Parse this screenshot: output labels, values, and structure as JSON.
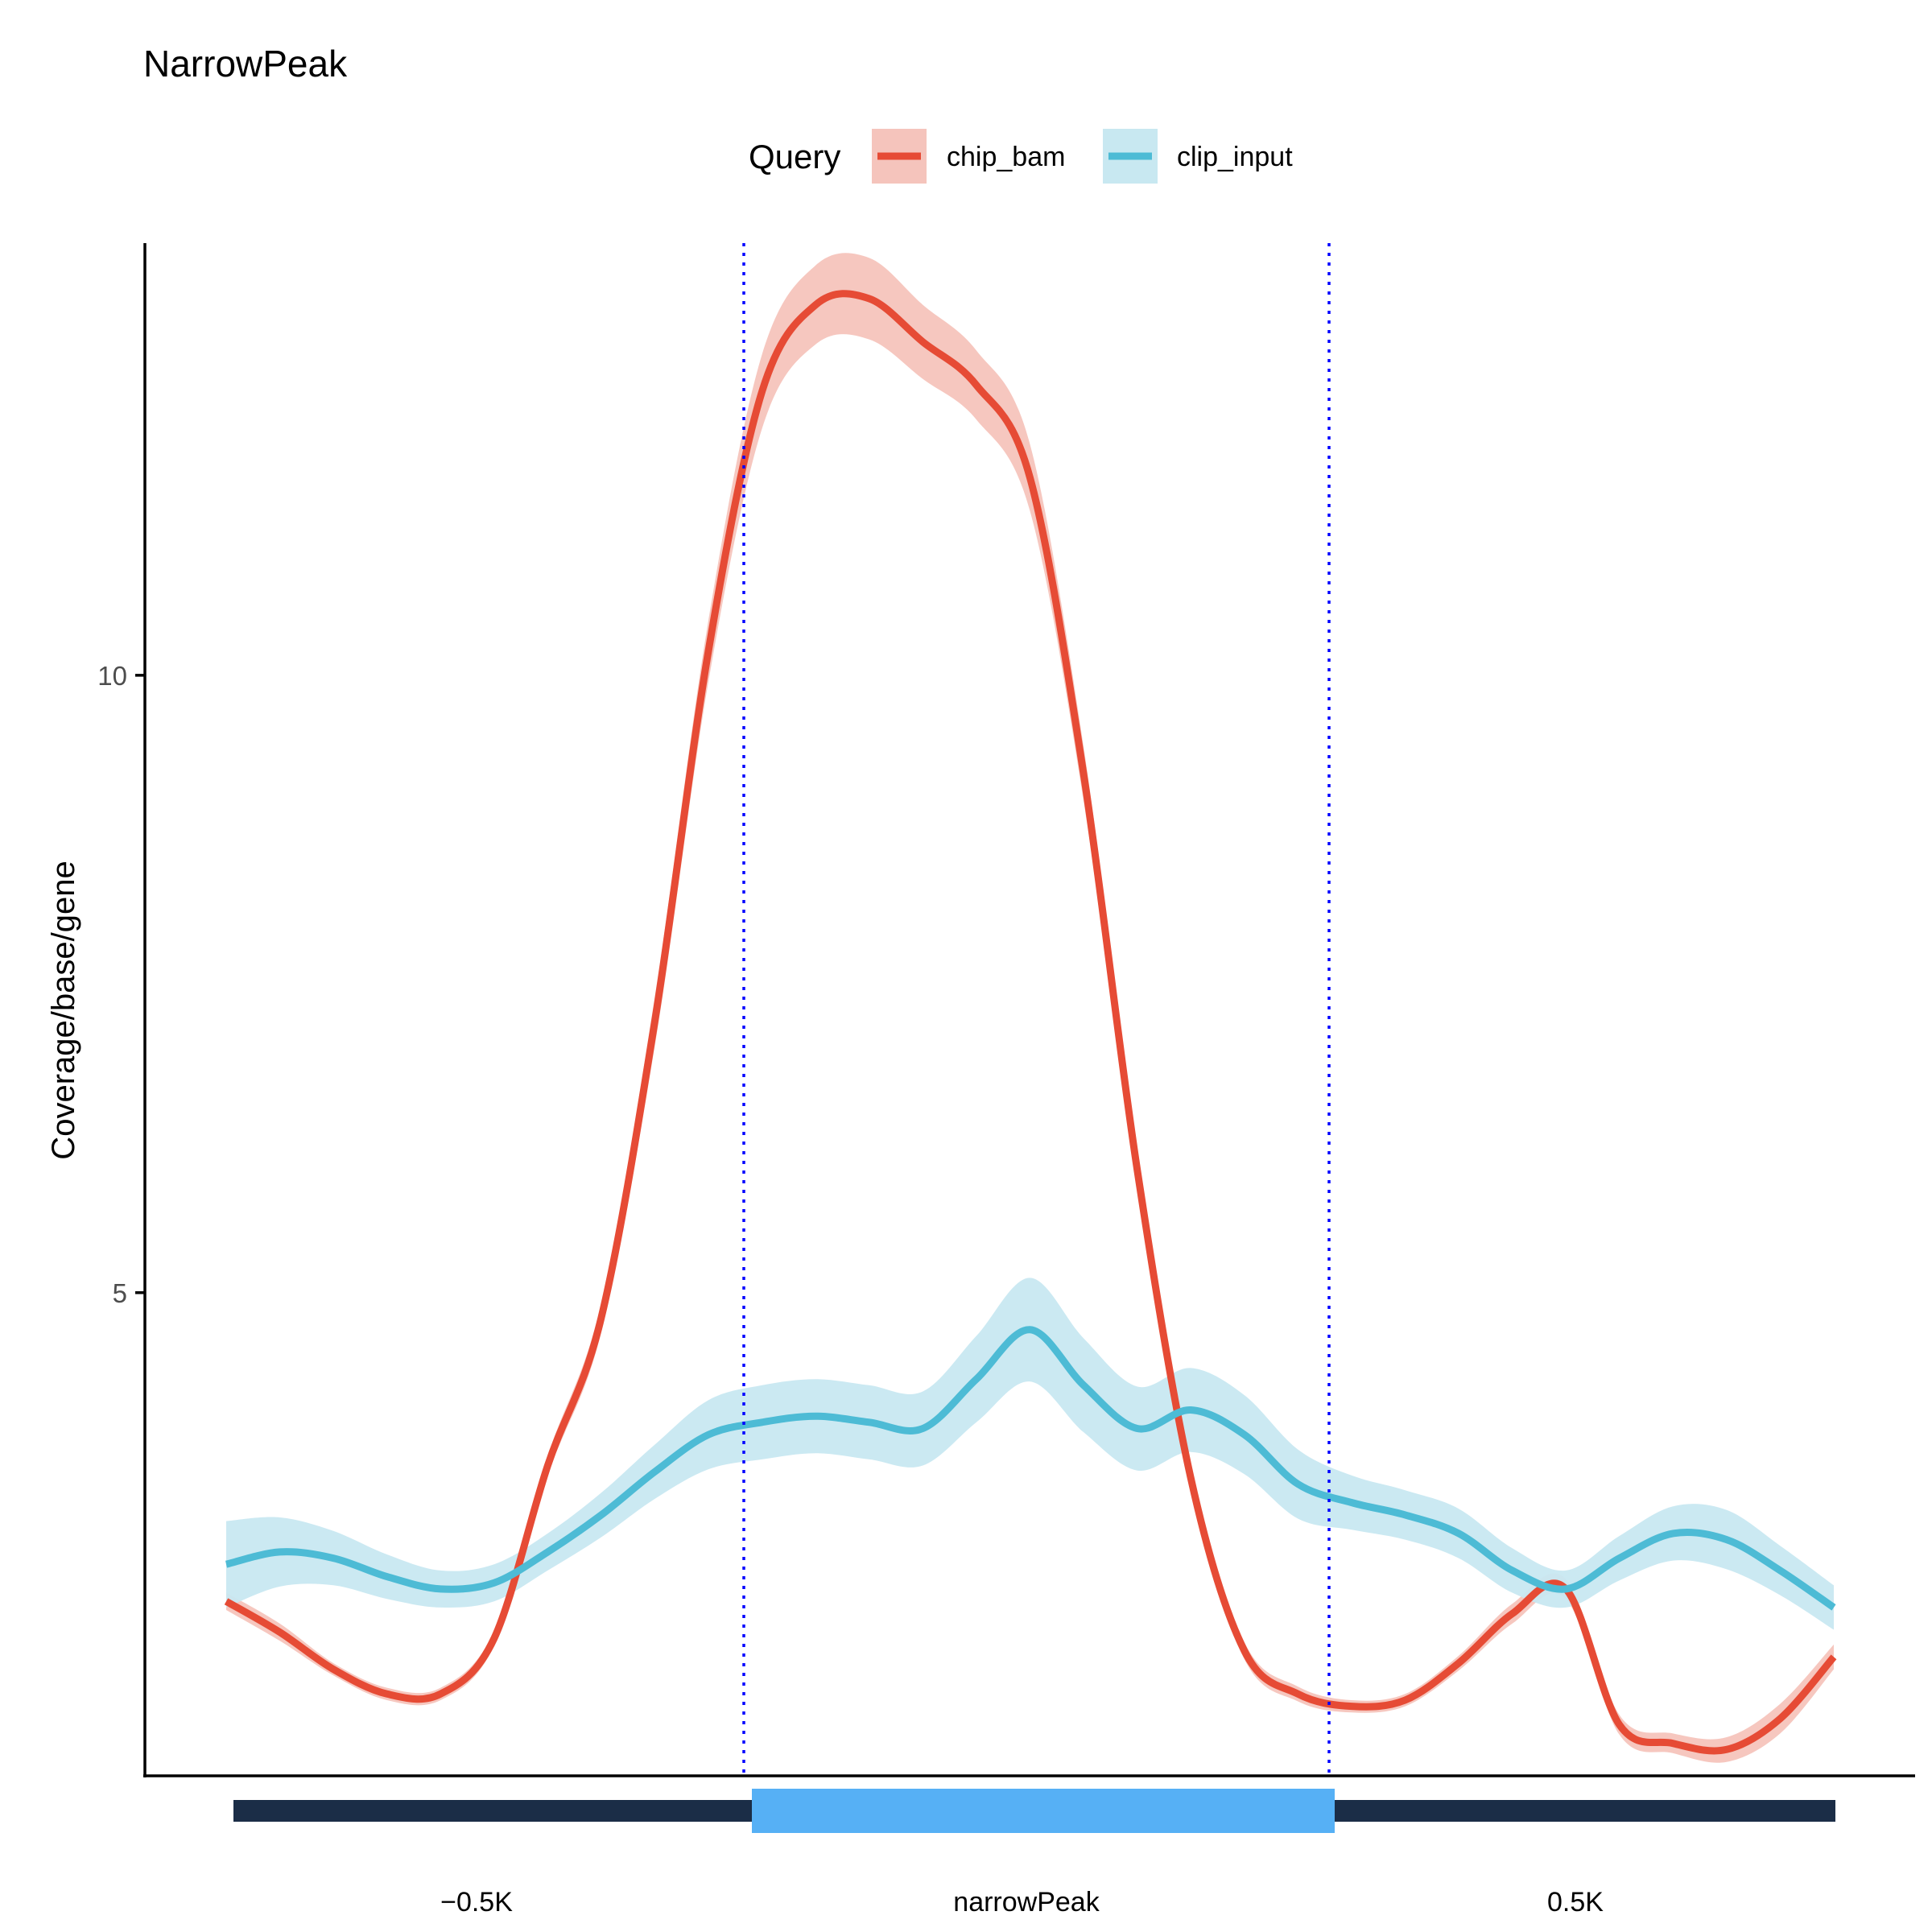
{
  "title": "NarrowPeak",
  "legend": {
    "title": "Query",
    "items": [
      {
        "label": "chip_bam",
        "line_color": "#E64B35",
        "fill_color": "#F5C4BC"
      },
      {
        "label": "clip_input",
        "line_color": "#4DBBD5",
        "fill_color": "#C8E8F1"
      }
    ]
  },
  "axes": {
    "ylabel": "Coverage/base/gene",
    "y_ticks": [
      {
        "value": 5,
        "label": "5"
      },
      {
        "value": 10,
        "label": "10"
      }
    ]
  },
  "regions": [
    {
      "label": "−0.5K",
      "color": "#1B2D47"
    },
    {
      "label": "narrowPeak",
      "color": "#56B0F5"
    },
    {
      "label": "0.5K",
      "color": "#1B2D47"
    }
  ],
  "guide_line_color": "#0000FF",
  "chart_data": {
    "type": "line",
    "title": "NarrowPeak",
    "xlabel": "",
    "ylabel": "Coverage/base/gene",
    "x_regions": [
      "−0.5K",
      "narrowPeak",
      "0.5K"
    ],
    "x": [
      0,
      5,
      10,
      15,
      20,
      25,
      30,
      35,
      40,
      45,
      50,
      55,
      60,
      65,
      70,
      75,
      80,
      85,
      90,
      95,
      100,
      105,
      110,
      115,
      120,
      125,
      130,
      135,
      140,
      145,
      150
    ],
    "ylim": [
      1.1,
      13.5
    ],
    "grid": false,
    "legend_position": "top",
    "series": [
      {
        "name": "chip_bam",
        "color": "#E64B35",
        "values": [
          2.5,
          2.25,
          1.95,
          1.75,
          1.75,
          2.2,
          3.6,
          4.8,
          7.2,
          10.2,
          12.3,
          13.0,
          13.05,
          12.7,
          12.35,
          11.6,
          9.2,
          6.0,
          3.5,
          2.1,
          1.75,
          1.65,
          1.7,
          2.0,
          2.4,
          2.6,
          1.5,
          1.35,
          1.3,
          1.55,
          2.05
        ],
        "band_halfwidth": [
          0.07,
          0.07,
          0.05,
          0.05,
          0.05,
          0.06,
          0.08,
          0.12,
          0.2,
          0.25,
          0.3,
          0.32,
          0.33,
          0.3,
          0.28,
          0.27,
          0.22,
          0.15,
          0.1,
          0.07,
          0.06,
          0.05,
          0.05,
          0.06,
          0.08,
          0.08,
          0.08,
          0.08,
          0.1,
          0.12,
          0.1
        ]
      },
      {
        "name": "clip_input",
        "color": "#4DBBD5",
        "values": [
          2.8,
          2.9,
          2.85,
          2.7,
          2.6,
          2.65,
          2.9,
          3.2,
          3.55,
          3.85,
          3.95,
          4.0,
          3.95,
          3.9,
          4.3,
          4.7,
          4.25,
          3.9,
          4.05,
          3.85,
          3.45,
          3.3,
          3.2,
          3.05,
          2.75,
          2.6,
          2.85,
          3.05,
          3.0,
          2.75,
          2.45
        ],
        "band_halfwidth": [
          0.35,
          0.28,
          0.22,
          0.18,
          0.15,
          0.15,
          0.15,
          0.18,
          0.22,
          0.28,
          0.3,
          0.3,
          0.3,
          0.3,
          0.35,
          0.42,
          0.38,
          0.34,
          0.34,
          0.32,
          0.28,
          0.22,
          0.2,
          0.2,
          0.18,
          0.15,
          0.18,
          0.22,
          0.24,
          0.2,
          0.18
        ]
      }
    ]
  }
}
